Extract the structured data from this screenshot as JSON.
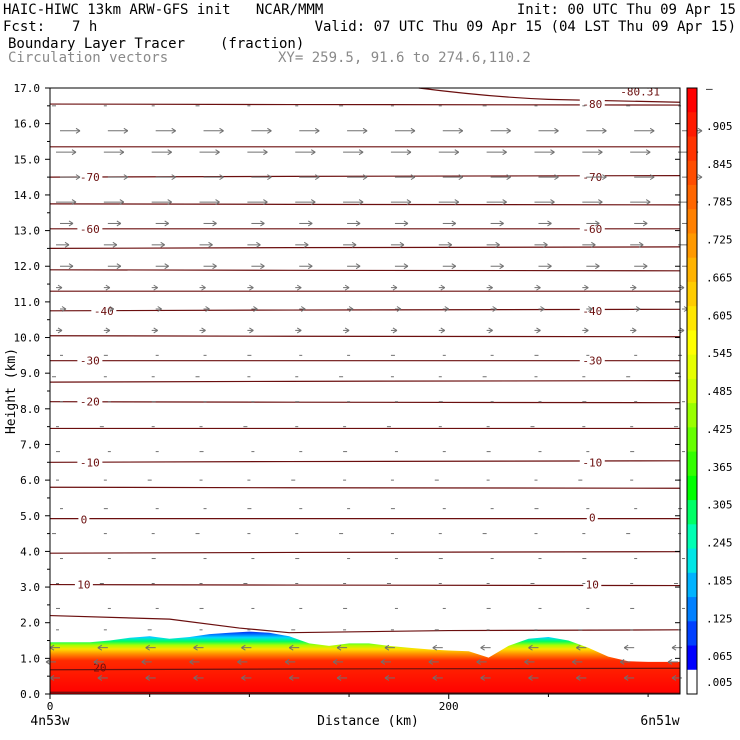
{
  "header": {
    "line1_left": "HAIC-HIWC 13km ARW-GFS init   NCAR/MMM",
    "line1_right": "Init: 00 UTC Thu 09 Apr 15",
    "fcst_label": "Fcst:",
    "fcst_value": "7 h",
    "valid": "Valid: 07 UTC Thu 09 Apr 15 (04 LST Thu 09 Apr 15)",
    "field1_name": "Boundary Layer Tracer",
    "field1_units": "(fraction)",
    "field2_name": "Circulation vectors",
    "xy_text": "XY= 259.5, 91.6 to 274.6,110.2"
  },
  "colors": {
    "contour": "#6b0f0f",
    "vector": "#707070",
    "frame": "#000000"
  },
  "chart_data": {
    "type": "heatmap",
    "xlabel": "Distance (km)",
    "ylabel": "Height (km)",
    "xlim": [
      0,
      316
    ],
    "ylim": [
      0,
      17
    ],
    "x_ticks": [
      {
        "value": 0,
        "label": "0"
      },
      {
        "value": 200,
        "label": "200"
      }
    ],
    "x_end_labels": {
      "left": "4n53w",
      "right": "6n51w"
    },
    "y_ticks": [
      "0.0",
      "1.0",
      "2.0",
      "3.0",
      "4.0",
      "5.0",
      "6.0",
      "7.0",
      "8.0",
      "9.0",
      "10.0",
      "11.0",
      "12.0",
      "13.0",
      "14.0",
      "15.0",
      "16.0",
      "17.0"
    ],
    "colorbar": {
      "labels": [
        "",
        ".905",
        ".845",
        ".785",
        ".725",
        ".665",
        ".605",
        ".545",
        ".485",
        ".425",
        ".365",
        ".305",
        ".245",
        ".185",
        ".125",
        ".065",
        ".005"
      ],
      "top_label": "–",
      "colors": [
        "#ff0000",
        "#ff1a00",
        "#ff3300",
        "#ff4d00",
        "#ff6600",
        "#ff8000",
        "#ff9900",
        "#ffb300",
        "#ffcc00",
        "#ffe600",
        "#ffff00",
        "#e6ff00",
        "#ccff00",
        "#99ff00",
        "#66ff00",
        "#33ff00",
        "#00ff00",
        "#00ff66",
        "#00ffb3",
        "#00e6e6",
        "#00b3ff",
        "#0080ff",
        "#0040ff",
        "#0000ff",
        "#ffffff"
      ]
    },
    "tracer_top_km": [
      [
        0,
        1.45
      ],
      [
        10,
        1.45
      ],
      [
        20,
        1.45
      ],
      [
        30,
        1.5
      ],
      [
        40,
        1.58
      ],
      [
        50,
        1.62
      ],
      [
        60,
        1.55
      ],
      [
        70,
        1.6
      ],
      [
        80,
        1.68
      ],
      [
        90,
        1.72
      ],
      [
        100,
        1.75
      ],
      [
        110,
        1.72
      ],
      [
        120,
        1.62
      ],
      [
        130,
        1.42
      ],
      [
        140,
        1.35
      ],
      [
        150,
        1.42
      ],
      [
        160,
        1.42
      ],
      [
        170,
        1.35
      ],
      [
        180,
        1.3
      ],
      [
        190,
        1.25
      ],
      [
        200,
        1.22
      ],
      [
        210,
        1.2
      ],
      [
        220,
        1.02
      ],
      [
        230,
        1.35
      ],
      [
        240,
        1.55
      ],
      [
        250,
        1.6
      ],
      [
        260,
        1.5
      ],
      [
        270,
        1.3
      ],
      [
        280,
        1.05
      ],
      [
        290,
        0.92
      ],
      [
        300,
        0.9
      ],
      [
        316,
        0.9
      ]
    ],
    "contour_labels": [
      {
        "value": "-80",
        "x": 272,
        "y": 16.55
      },
      {
        "value": "-70",
        "x": 20,
        "y": 14.5
      },
      {
        "value": "-70",
        "x": 272,
        "y": 14.5
      },
      {
        "value": "-60",
        "x": 20,
        "y": 13.05
      },
      {
        "value": "-60",
        "x": 272,
        "y": 13.05
      },
      {
        "value": "-40",
        "x": 27,
        "y": 10.75
      },
      {
        "value": "-40",
        "x": 272,
        "y": 10.75
      },
      {
        "value": "-30",
        "x": 20,
        "y": 9.35
      },
      {
        "value": "-30",
        "x": 272,
        "y": 9.35
      },
      {
        "value": "-20",
        "x": 20,
        "y": 8.2
      },
      {
        "value": "-10",
        "x": 20,
        "y": 6.5
      },
      {
        "value": "-10",
        "x": 272,
        "y": 6.5
      },
      {
        "value": "0",
        "x": 17,
        "y": 4.9
      },
      {
        "value": "0",
        "x": 272,
        "y": 4.95
      },
      {
        "value": "10",
        "x": 17,
        "y": 3.07
      },
      {
        "value": "10",
        "x": 272,
        "y": 3.07
      },
      {
        "value": "20",
        "x": 25,
        "y": 0.75
      },
      {
        "value": "-80.31",
        "x": 296,
        "y": 16.9
      }
    ],
    "contour_heights_km": [
      16.95,
      16.55,
      15.35,
      14.5,
      13.75,
      13.05,
      12.5,
      11.9,
      11.3,
      10.75,
      10.05,
      9.35,
      8.75,
      8.2,
      7.45,
      6.5,
      5.8,
      4.92,
      3.95,
      3.07,
      2.2,
      0.68,
      0.05
    ],
    "vector_columns_km": [
      0,
      24,
      48,
      72,
      96,
      120,
      144,
      168,
      192,
      216,
      240,
      264,
      288,
      312
    ],
    "vector_rows_km": [
      16.5,
      15.8,
      15.2,
      14.5,
      13.8,
      13.2,
      12.6,
      12.0,
      11.4,
      10.8,
      10.2,
      9.5,
      8.9,
      8.2,
      7.5,
      6.8,
      6.0,
      5.2,
      4.5,
      3.8,
      3.1,
      2.4,
      1.8,
      1.3,
      0.9,
      0.45
    ]
  }
}
